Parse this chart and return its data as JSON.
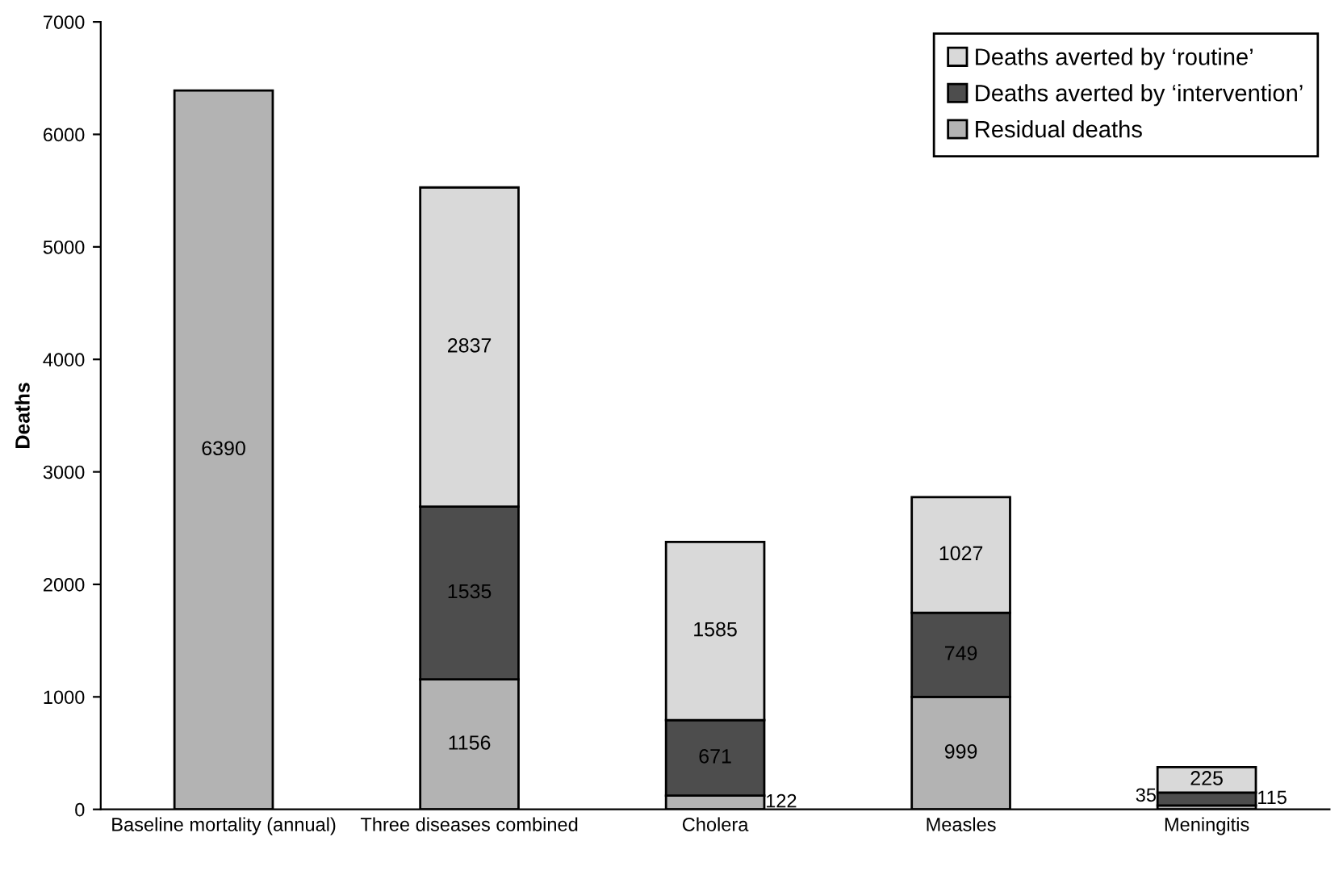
{
  "chart_data": {
    "type": "bar",
    "stacked": true,
    "ylabel": "Deaths",
    "categories": [
      "Baseline mortality (annual)",
      "Three diseases combined",
      "Cholera",
      "Measles",
      "Meningitis"
    ],
    "series": [
      {
        "name": "Residual deaths",
        "color": "#b3b3b3",
        "values": [
          6390,
          1156,
          122,
          999,
          35
        ]
      },
      {
        "name": "Deaths averted by ‘intervention’",
        "color": "#4d4d4d",
        "values": [
          null,
          1535,
          671,
          749,
          115
        ]
      },
      {
        "name": "Deaths averted by ‘routine’",
        "color": "#d9d9d9",
        "values": [
          null,
          2837,
          1585,
          1027,
          225
        ]
      }
    ],
    "ylim": [
      0,
      7000
    ],
    "yticks": [
      0,
      1000,
      2000,
      3000,
      4000,
      5000,
      6000,
      7000
    ],
    "grid": false,
    "legend": "top right",
    "data_labels": true
  }
}
